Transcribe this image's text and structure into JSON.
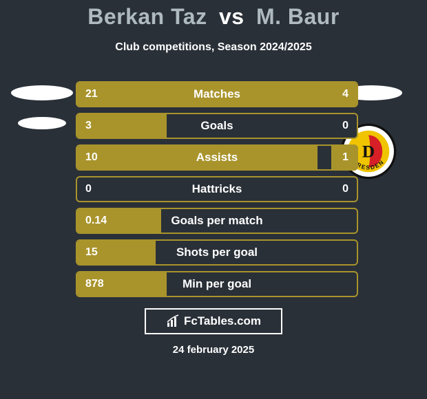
{
  "colors": {
    "bg": "#2a3038",
    "text": "#ffffff",
    "accent": "#a9942c",
    "border": "#a9942c",
    "empty": "#2a3038",
    "title_p1": "#aebac0",
    "title_vs": "#ffffff",
    "title_p2": "#aebac0",
    "crest_ring": "#ffffff",
    "crest_bg": "#ffffff",
    "crest_red": "#d61f26",
    "crest_yellow": "#f0c400",
    "crest_black": "#111111"
  },
  "title": {
    "player1": "Berkan Taz",
    "vs": "vs",
    "player2": "M. Baur"
  },
  "subtitle": "Club competitions, Season 2024/2025",
  "stats": {
    "rows": [
      {
        "label": "Matches",
        "left": "21",
        "right": "4",
        "left_share": 0.84,
        "right_share": 0.16
      },
      {
        "label": "Goals",
        "left": "3",
        "right": "0",
        "left_share": 0.32,
        "right_share": 0.0
      },
      {
        "label": "Assists",
        "left": "10",
        "right": "1",
        "left_share": 0.86,
        "right_share": 0.09
      },
      {
        "label": "Hattricks",
        "left": "0",
        "right": "0",
        "left_share": 0.0,
        "right_share": 0.0
      },
      {
        "label": "Goals per match",
        "left": "0.14",
        "right": "",
        "left_share": 0.3,
        "right_share": 0.0
      },
      {
        "label": "Shots per goal",
        "left": "15",
        "right": "",
        "left_share": 0.28,
        "right_share": 0.0
      },
      {
        "label": "Min per goal",
        "left": "878",
        "right": "",
        "left_share": 0.32,
        "right_share": 0.0
      }
    ]
  },
  "brand": "FcTables.com",
  "date": "24 february 2025",
  "crest_text": "DRESDEN",
  "crest_letter": "D"
}
